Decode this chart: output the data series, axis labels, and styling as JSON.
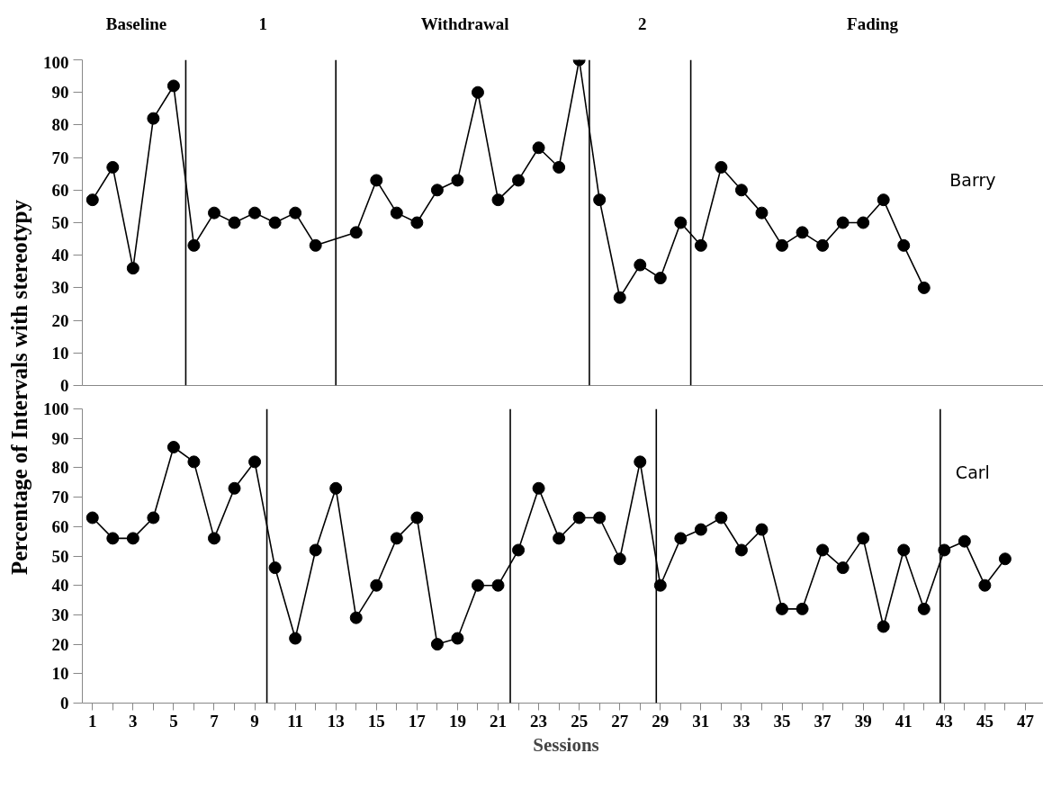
{
  "chart_data": [
    {
      "type": "line",
      "ylabel": "Percentage of Intervals with stereotypy",
      "marker": "circle",
      "line_style": "solid",
      "grid": false,
      "legend": false,
      "tick_labels": "y",
      "x": [
        1,
        2,
        3,
        4,
        5,
        6,
        7,
        8,
        9,
        10,
        11,
        12,
        14,
        15,
        16,
        17,
        18,
        19,
        20,
        21,
        22,
        23,
        24,
        25,
        26,
        27,
        28,
        29,
        30,
        31,
        32,
        33,
        34,
        35,
        36,
        37,
        38,
        39,
        40,
        41,
        42
      ],
      "xlim": [
        0.5,
        48.2
      ],
      "ylim": [
        0,
        100
      ],
      "yticks": [
        0,
        10,
        20,
        30,
        40,
        50,
        60,
        70,
        80,
        90,
        100
      ],
      "series": [
        {
          "name": "Barry",
          "color": "#000000",
          "values": [
            57,
            67,
            36,
            82,
            92,
            43,
            53,
            50,
            53,
            50,
            53,
            43,
            47,
            63,
            53,
            50,
            60,
            63,
            90,
            57,
            63,
            73,
            67,
            100,
            57,
            27,
            37,
            33,
            50,
            43,
            67,
            60,
            53,
            43,
            47,
            43,
            50,
            50,
            57,
            43,
            30
          ]
        }
      ],
      "ref_lines": [
        {
          "axis": "x",
          "value": 5.6,
          "color": "#000000"
        },
        {
          "axis": "x",
          "value": 13,
          "color": "#000000"
        },
        {
          "axis": "x",
          "value": 25.5,
          "color": "#000000"
        },
        {
          "axis": "x",
          "value": 30.5,
          "color": "#000000"
        }
      ],
      "annotations": [
        "Baseline",
        "1",
        "Withdrawal",
        "2",
        "Fading"
      ]
    },
    {
      "type": "line",
      "xlabel": "Sessions",
      "marker": "circle",
      "line_style": "solid",
      "grid": false,
      "legend": false,
      "x": [
        1,
        2,
        3,
        4,
        5,
        6,
        7,
        8,
        9,
        10,
        11,
        12,
        13,
        14,
        15,
        16,
        17,
        18,
        19,
        20,
        21,
        22,
        23,
        24,
        25,
        26,
        27,
        28,
        29,
        30,
        31,
        32,
        33,
        34,
        35,
        36,
        37,
        38,
        39,
        40,
        41,
        42,
        43,
        44,
        45,
        46
      ],
      "xlim": [
        0.5,
        48.2
      ],
      "ylim": [
        0,
        100
      ],
      "yticks": [
        0,
        10,
        20,
        30,
        40,
        50,
        60,
        70,
        80,
        90,
        100
      ],
      "xticks": [
        1,
        {
          "value": 2,
          "label": null
        },
        3,
        {
          "value": 4,
          "label": null
        },
        5,
        {
          "value": 6,
          "label": null
        },
        7,
        {
          "value": 8,
          "label": null
        },
        9,
        {
          "value": 10,
          "label": null
        },
        11,
        {
          "value": 12,
          "label": null
        },
        13,
        {
          "value": 14,
          "label": null
        },
        15,
        {
          "value": 16,
          "label": null
        },
        17,
        {
          "value": 18,
          "label": null
        },
        19,
        {
          "value": 20,
          "label": null
        },
        21,
        {
          "value": 22,
          "label": null
        },
        23,
        {
          "value": 24,
          "label": null
        },
        25,
        {
          "value": 26,
          "label": null
        },
        27,
        {
          "value": 28,
          "label": null
        },
        29,
        {
          "value": 30,
          "label": null
        },
        31,
        {
          "value": 32,
          "label": null
        },
        33,
        {
          "value": 34,
          "label": null
        },
        35,
        {
          "value": 36,
          "label": null
        },
        37,
        {
          "value": 38,
          "label": null
        },
        39,
        {
          "value": 40,
          "label": null
        },
        41,
        {
          "value": 42,
          "label": null
        },
        43,
        {
          "value": 44,
          "label": null
        },
        45,
        {
          "value": 46,
          "label": null
        },
        47,
        {
          "value": 48,
          "label": null
        }
      ],
      "series": [
        {
          "name": "Carl",
          "color": "#000000",
          "values": [
            63,
            56,
            56,
            63,
            87,
            82,
            56,
            73,
            82,
            46,
            22,
            52,
            73,
            29,
            40,
            56,
            63,
            20,
            22,
            40,
            40,
            52,
            73,
            56,
            63,
            63,
            49,
            82,
            40,
            56,
            59,
            63,
            52,
            59,
            32,
            32,
            52,
            46,
            56,
            26,
            52,
            32,
            52,
            55,
            40,
            49
          ]
        }
      ],
      "ref_lines": [
        {
          "axis": "x",
          "value": 9.6,
          "color": "#000000"
        },
        {
          "axis": "x",
          "value": 21.6,
          "color": "#000000"
        },
        {
          "axis": "x",
          "value": 28.8,
          "color": "#000000"
        },
        {
          "axis": "x",
          "value": 42.8,
          "color": "#000000"
        }
      ]
    }
  ]
}
